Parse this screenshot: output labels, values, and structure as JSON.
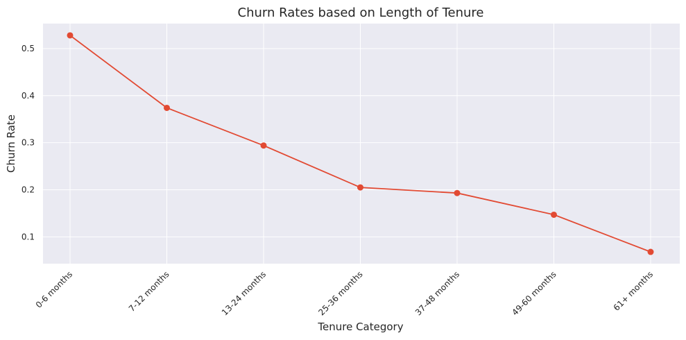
{
  "chart_data": {
    "type": "line",
    "title": "Churn Rates based on Length of Tenure",
    "xlabel": "Tenure Category",
    "ylabel": "Churn Rate",
    "categories": [
      "0-6 months",
      "7-12 months",
      "13-24 months",
      "25-36 months",
      "37-48 months",
      "49-60 months",
      "61+ months"
    ],
    "series": [
      {
        "values": [
          0.528,
          0.374,
          0.294,
          0.205,
          0.193,
          0.147,
          0.068
        ]
      }
    ],
    "yticks": [
      "0.1",
      "0.2",
      "0.3",
      "0.4",
      "0.5"
    ],
    "ylim": [
      0.043,
      0.553
    ],
    "grid": true,
    "colors": {
      "line": "#e24a33",
      "background": "#eaeaf2",
      "grid": "#ffffff"
    }
  }
}
